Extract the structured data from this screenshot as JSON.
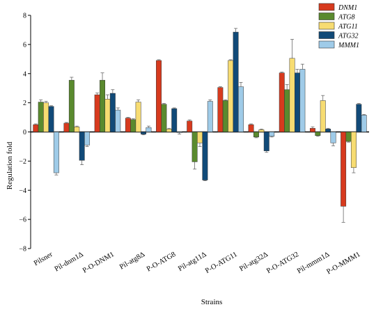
{
  "chart_data": {
    "type": "bar",
    "title": "",
    "xlabel": "Strains",
    "ylabel": "Regulation fold",
    "ylim": [
      -8,
      8
    ],
    "yticks": [
      -8,
      -6,
      -4,
      -2,
      0,
      2,
      4,
      6,
      8
    ],
    "grid": false,
    "legend_position": "top-right",
    "categories": [
      "Pilsner",
      "Pil-dnm1Δ",
      "P-O-DNM1",
      "Pil-atg8Δ",
      "P-O-ATG8",
      "Pil-atg11Δ",
      "P-O-ATG11",
      "Pil-atg32Δ",
      "P-O-ATG32",
      "Pil-mmm1Δ",
      "P-O-MMM1"
    ],
    "series": [
      {
        "name": "DNM1",
        "color": "#d73a1e",
        "values": [
          0.5,
          0.6,
          2.55,
          0.95,
          4.9,
          0.75,
          3.05,
          0.5,
          4.05,
          0.25,
          -5.1
        ],
        "errors": [
          0.05,
          0.05,
          0.12,
          0.05,
          0.05,
          0.08,
          0.05,
          0.05,
          0.05,
          0.1,
          1.1
        ]
      },
      {
        "name": "ATG8",
        "color": "#5a8a2e",
        "values": [
          2.05,
          3.55,
          3.55,
          0.85,
          1.9,
          -2.05,
          2.15,
          -0.35,
          2.9,
          -0.25,
          -0.65
        ],
        "errors": [
          0.15,
          0.2,
          0.5,
          0.05,
          0.05,
          0.5,
          0.05,
          0.05,
          0.35,
          0.05,
          0.05
        ]
      },
      {
        "name": "ATG11",
        "color": "#f7dc72",
        "values": [
          2.0,
          0.35,
          2.25,
          2.05,
          0.2,
          -0.75,
          4.9,
          0.15,
          5.05,
          2.15,
          -2.45
        ],
        "errors": [
          0.1,
          0.05,
          0.3,
          0.15,
          0.05,
          0.25,
          0.05,
          0.05,
          1.3,
          0.35,
          0.35
        ]
      },
      {
        "name": "ATG32",
        "color": "#114a78",
        "values": [
          1.75,
          -1.95,
          2.65,
          -0.15,
          1.6,
          -3.3,
          6.85,
          -1.3,
          4.05,
          0.2,
          1.9
        ],
        "errors": [
          0.05,
          0.3,
          0.25,
          0.05,
          0.05,
          0.05,
          0.25,
          0.1,
          0.25,
          0.05,
          0.05
        ]
      },
      {
        "name": "MMM1",
        "color": "#9fcbe8",
        "values": [
          -2.8,
          -0.9,
          1.5,
          0.3,
          -0.05,
          2.1,
          3.1,
          -0.3,
          4.3,
          -0.75,
          1.15
        ],
        "errors": [
          0.15,
          0.1,
          0.15,
          0.1,
          0.1,
          0.1,
          0.3,
          0.05,
          0.35,
          0.2,
          0.05
        ]
      }
    ]
  }
}
